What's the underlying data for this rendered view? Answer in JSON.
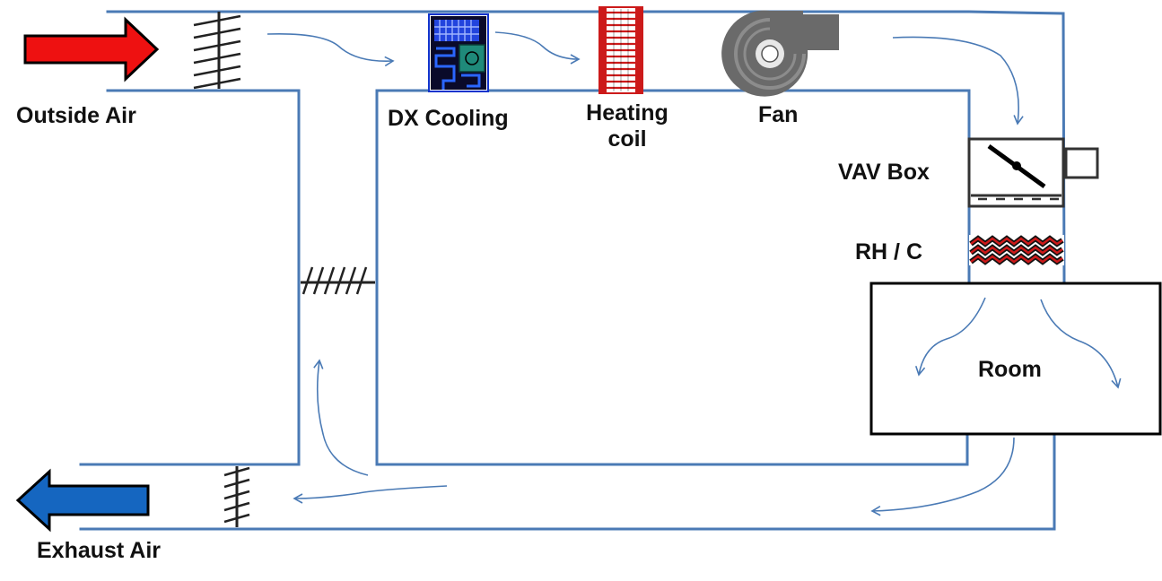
{
  "labels": {
    "outside_air": "Outside Air",
    "exhaust_air": "Exhaust Air",
    "dx_cooling": "DX Cooling",
    "heating_coil_line1": "Heating",
    "heating_coil_line2": "coil",
    "fan": "Fan",
    "vav_box": "VAV Box",
    "rh_c": "RH / C",
    "room": "Room"
  },
  "colors": {
    "duct": "#4a7ab5",
    "flow_arrow": "#4a7ab5",
    "outside_air_arrow": "#ee1111",
    "exhaust_air_arrow": "#1566c0",
    "heating_coil": "#cc1a1a",
    "reheat_coil": "#cc1a1a",
    "dx_cooling_body": "#1133cc",
    "dx_cooling_module": "#1f8a7a",
    "fan": "#666666",
    "damper": "#222222",
    "room_border": "#000000"
  },
  "icons": {
    "outside_air_arrow": "arrow-right-icon",
    "exhaust_air_arrow": "arrow-left-icon",
    "outside_air_damper": "damper-icon",
    "mixing_damper": "damper-icon",
    "exhaust_damper": "damper-icon",
    "dx_cooling": "dx-coil-icon",
    "heating_coil": "heating-coil-icon",
    "fan": "centrifugal-fan-icon",
    "vav_box": "vav-damper-icon",
    "reheat_coil": "reheat-coil-icon"
  }
}
